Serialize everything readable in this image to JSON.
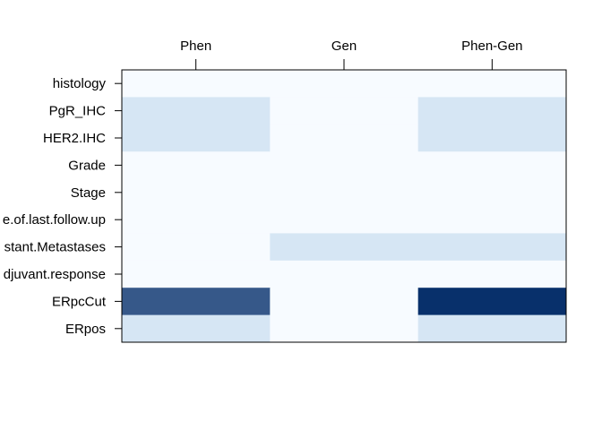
{
  "chart_data": {
    "type": "heatmap",
    "x_categories": [
      "Phen",
      "Gen",
      "Phen-Gen"
    ],
    "y_categories": [
      "histology",
      "PgR_IHC",
      "HER2.IHC",
      "Grade",
      "Stage",
      "e.of.last.follow.up",
      "stant.Metastases",
      "djuvant.response",
      "ERpcCut",
      "ERpos"
    ],
    "values": [
      [
        0,
        0,
        0
      ],
      [
        1,
        0,
        1
      ],
      [
        1,
        0,
        1
      ],
      [
        0,
        0,
        0
      ],
      [
        0,
        0,
        0
      ],
      [
        0,
        0,
        0
      ],
      [
        0,
        1,
        1
      ],
      [
        0,
        0,
        0
      ],
      [
        8,
        0,
        10
      ],
      [
        1,
        0,
        1
      ]
    ],
    "color_scale": [
      "#f7fbff",
      "#d6e6f4",
      "#08306b"
    ],
    "vmin": 0,
    "vmax": 10,
    "x_axis_position": "top",
    "y_axis_position": "left",
    "grid": false,
    "legend": "none"
  }
}
